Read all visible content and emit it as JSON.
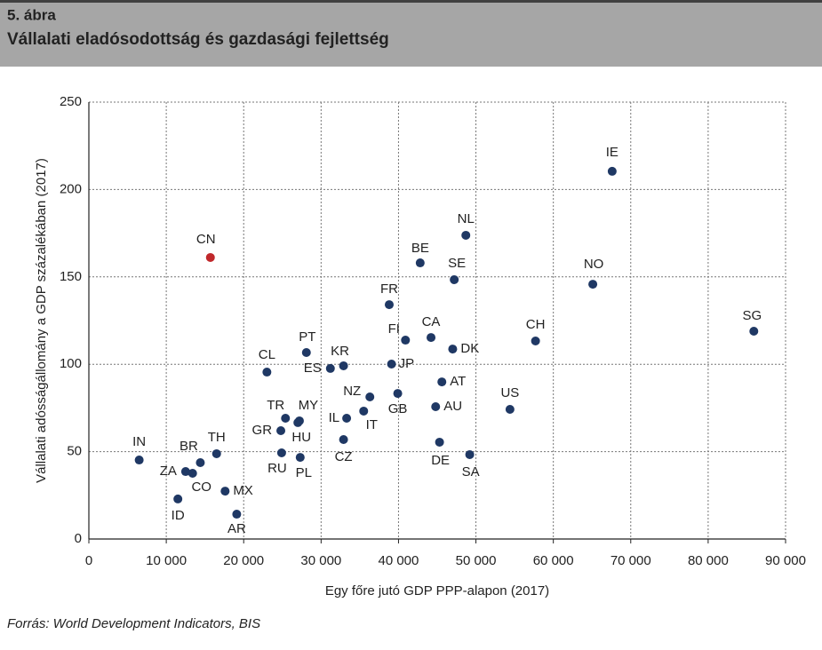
{
  "chart_data": {
    "type": "scatter",
    "figure_label": "5. ábra",
    "title": "Vállalati eladósodottság és gazdasági fejlettség",
    "xlabel": "Egy főre jutó GDP PPP-alapon (2017)",
    "ylabel": "Vállalati adósságállomány a GDP százalékában (2017)",
    "source": "Forrás: World Development Indicators, BIS",
    "labels": [
      "IN",
      "ZA",
      "CO",
      "BR",
      "ID",
      "TH",
      "MX",
      "AR",
      "CN",
      "CL",
      "PT",
      "TR",
      "GR",
      "MY",
      "HU",
      "RU",
      "PL",
      "ES",
      "KR",
      "JP",
      "FR",
      "FI",
      "BE",
      "NL",
      "SE",
      "CA",
      "DK",
      "NZ",
      "GB",
      "IL",
      "IT",
      "CZ",
      "AT",
      "AU",
      "DE",
      "SA",
      "US",
      "CH",
      "NO",
      "IE",
      "SG"
    ],
    "x": [
      6500,
      12500,
      13400,
      14400,
      11500,
      16500,
      17600,
      19100,
      15700,
      23000,
      28100,
      25400,
      24800,
      27200,
      27000,
      24900,
      27300,
      31200,
      32900,
      39100,
      38800,
      40900,
      42800,
      48700,
      47200,
      44200,
      47000,
      36300,
      39900,
      33300,
      35500,
      32900,
      45600,
      44800,
      45300,
      49200,
      54400,
      57700,
      65100,
      67600,
      85900
    ],
    "y": [
      45.2,
      38.6,
      37.6,
      43.7,
      22.9,
      48.8,
      27.4,
      14.2,
      161.1,
      95.5,
      106.7,
      69.1,
      62.0,
      67.6,
      66.6,
      49.3,
      46.7,
      97.6,
      99.1,
      100.1,
      134.1,
      113.8,
      158.0,
      173.8,
      148.4,
      115.3,
      108.7,
      81.3,
      83.3,
      69.1,
      73.2,
      56.9,
      89.9,
      75.7,
      55.4,
      48.3,
      74.2,
      113.3,
      145.8,
      210.4,
      118.9
    ],
    "point_colors": [
      "#1f3864",
      "#1f3864",
      "#1f3864",
      "#1f3864",
      "#1f3864",
      "#1f3864",
      "#1f3864",
      "#1f3864",
      "#c0282b",
      "#1f3864",
      "#1f3864",
      "#1f3864",
      "#1f3864",
      "#1f3864",
      "#1f3864",
      "#1f3864",
      "#1f3864",
      "#1f3864",
      "#1f3864",
      "#1f3864",
      "#1f3864",
      "#1f3864",
      "#1f3864",
      "#1f3864",
      "#1f3864",
      "#1f3864",
      "#1f3864",
      "#1f3864",
      "#1f3864",
      "#1f3864",
      "#1f3864",
      "#1f3864",
      "#1f3864",
      "#1f3864",
      "#1f3864",
      "#1f3864",
      "#1f3864",
      "#1f3864",
      "#1f3864",
      "#1f3864",
      "#1f3864"
    ],
    "xlim": [
      0,
      90000
    ],
    "ylim": [
      0,
      250
    ],
    "xticks": [
      0,
      {
        "value": 10000,
        "label": "10 000"
      },
      {
        "value": 20000,
        "label": "20 000"
      },
      {
        "value": 30000,
        "label": "30 000"
      },
      {
        "value": 40000,
        "label": "40 000"
      },
      {
        "value": 50000,
        "label": "50 000"
      },
      {
        "value": 60000,
        "label": "60 000"
      },
      {
        "value": 70000,
        "label": "70 000"
      },
      {
        "value": 80000,
        "label": "80 000"
      },
      {
        "value": 90000,
        "label": "90 000"
      }
    ],
    "yticks": [
      0,
      50,
      100,
      150,
      200,
      250
    ],
    "grid": true
  }
}
